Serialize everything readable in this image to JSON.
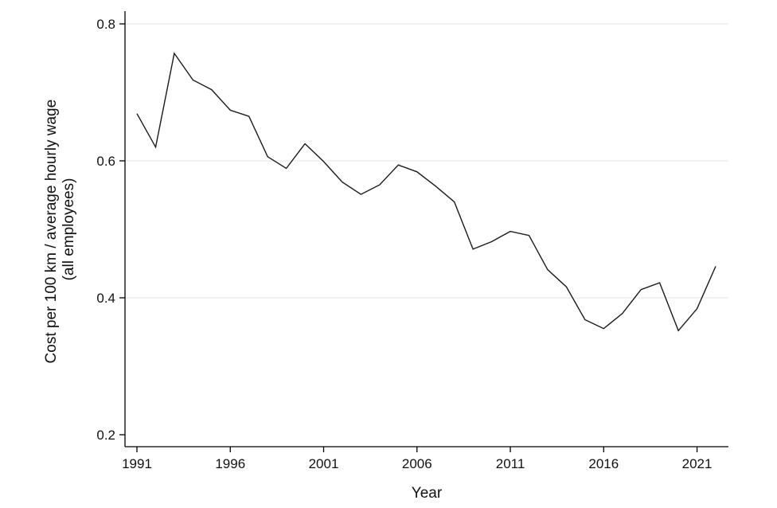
{
  "chart_data": {
    "type": "line",
    "xlabel": "Year",
    "ylabel": [
      "Cost per 100 km / average hourly wage",
      "(all employees)"
    ],
    "xlim": [
      1991,
      2022
    ],
    "ylim": [
      0.2,
      0.8
    ],
    "x_ticks": [
      1991,
      1996,
      2001,
      2006,
      2011,
      2016,
      2021
    ],
    "y_ticks": [
      0.2,
      0.4,
      0.6,
      0.8
    ],
    "y_tick_labels": [
      "0.2",
      "0.4",
      "0.6",
      "0.8"
    ],
    "grid": "horizontal",
    "line_color": "#1a1a1a",
    "grid_color": "#e6e6e6",
    "series": [
      {
        "x": [
          1991,
          1992,
          1993,
          1994,
          1995,
          1996,
          1997,
          1998,
          1999,
          2000,
          2001,
          2002,
          2003,
          2004,
          2005,
          2006,
          2007,
          2008,
          2009,
          2010,
          2011,
          2012,
          2013,
          2014,
          2015,
          2016,
          2017,
          2018,
          2019,
          2020,
          2021,
          2022
        ],
        "values": [
          0.669,
          0.62,
          0.757,
          0.718,
          0.704,
          0.674,
          0.665,
          0.606,
          0.589,
          0.625,
          0.599,
          0.569,
          0.551,
          0.565,
          0.594,
          0.584,
          0.563,
          0.54,
          0.471,
          0.482,
          0.497,
          0.491,
          0.441,
          0.416,
          0.368,
          0.355,
          0.377,
          0.412,
          0.422,
          0.352,
          0.384,
          0.446
        ]
      }
    ]
  }
}
